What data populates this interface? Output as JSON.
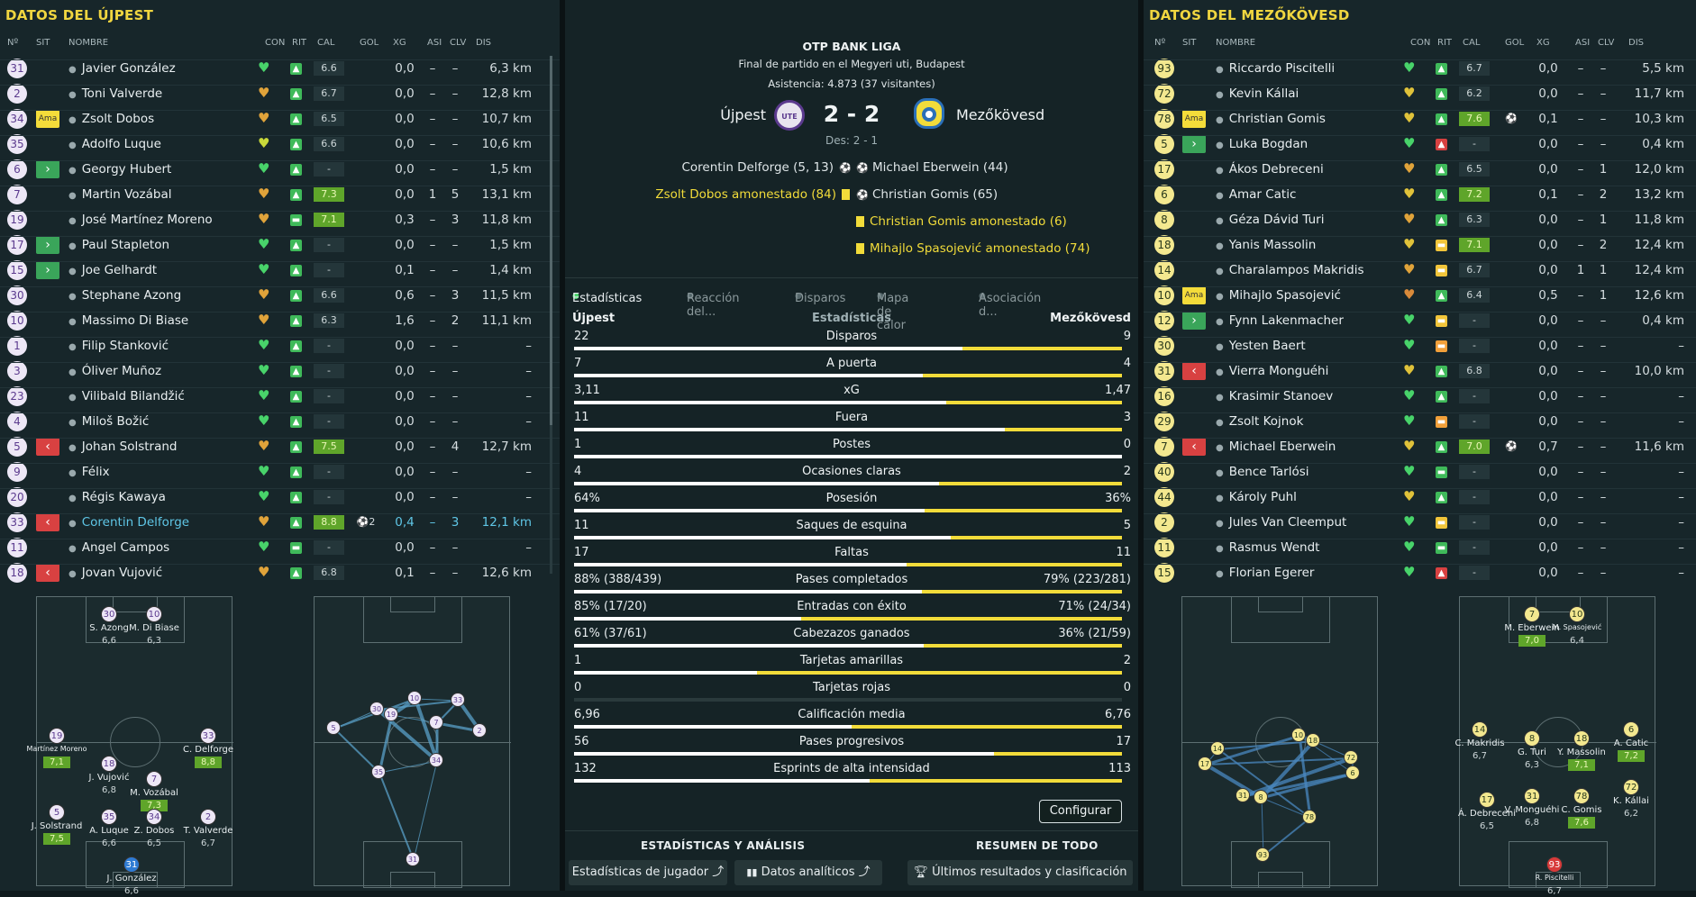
{
  "left": {
    "title": "DATOS DEL ÚJPEST",
    "headers": [
      "Nº",
      "SIT",
      "NOMBRE",
      "CON",
      "RIT",
      "CAL",
      "GOL",
      "XG",
      "ASI",
      "CLV",
      "DIS"
    ],
    "players": [
      {
        "n": "31",
        "sit": "",
        "name": "Javier González",
        "heart": "#48d36a",
        "rit": "#3fba5a",
        "rs": "▲",
        "cal": "6.6",
        "calg": false,
        "gol": "",
        "xg": "0,0",
        "asi": "–",
        "clv": "–",
        "dis": "6,3 km"
      },
      {
        "n": "2",
        "sit": "",
        "name": "Toni Valverde",
        "heart": "#e0a33a",
        "rit": "#3fba5a",
        "rs": "▲",
        "cal": "6.7",
        "calg": false,
        "gol": "",
        "xg": "0,0",
        "asi": "–",
        "clv": "–",
        "dis": "12,8 km"
      },
      {
        "n": "34",
        "sit": "Ama",
        "name": "Zsolt Dobos",
        "heart": "#e0a33a",
        "rit": "#3fba5a",
        "rs": "▲",
        "cal": "6.5",
        "calg": false,
        "gol": "",
        "xg": "0,0",
        "asi": "–",
        "clv": "–",
        "dis": "10,7 km"
      },
      {
        "n": "35",
        "sit": "",
        "name": "Adolfo Luque",
        "heart": "#c9d93a",
        "rit": "#3fba5a",
        "rs": "▲",
        "cal": "6.6",
        "calg": false,
        "gol": "",
        "xg": "0,0",
        "asi": "–",
        "clv": "–",
        "dis": "10,6 km"
      },
      {
        "n": "6",
        "sit": "in",
        "name": "Georgy Hubert",
        "heart": "#48d36a",
        "rit": "#3fba5a",
        "rs": "▲",
        "cal": "-",
        "calg": false,
        "gol": "",
        "xg": "0,0",
        "asi": "–",
        "clv": "–",
        "dis": "1,5 km"
      },
      {
        "n": "7",
        "sit": "",
        "name": "Martin Vozábal",
        "heart": "#e0a33a",
        "rit": "#3fba5a",
        "rs": "▲",
        "cal": "7.3",
        "calg": true,
        "gol": "",
        "xg": "0,0",
        "asi": "1",
        "clv": "5",
        "dis": "13,1 km"
      },
      {
        "n": "19",
        "sit": "",
        "name": "José Martínez Moreno",
        "heart": "#e0a33a",
        "rit": "#3fba5a",
        "rs": "▬",
        "cal": "7.1",
        "calg": true,
        "gol": "",
        "xg": "0,3",
        "asi": "–",
        "clv": "3",
        "dis": "11,8 km"
      },
      {
        "n": "17",
        "sit": "in",
        "name": "Paul Stapleton",
        "heart": "#48d36a",
        "rit": "#3fba5a",
        "rs": "▲",
        "cal": "-",
        "calg": false,
        "gol": "",
        "xg": "0,0",
        "asi": "–",
        "clv": "–",
        "dis": "1,5 km"
      },
      {
        "n": "15",
        "sit": "in",
        "name": "Joe Gelhardt",
        "heart": "#48d36a",
        "rit": "#3fba5a",
        "rs": "▲",
        "cal": "-",
        "calg": false,
        "gol": "",
        "xg": "0,1",
        "asi": "–",
        "clv": "–",
        "dis": "1,4 km"
      },
      {
        "n": "30",
        "sit": "",
        "name": "Stephane Azong",
        "heart": "#e0a33a",
        "rit": "#3fba5a",
        "rs": "▲",
        "cal": "6.6",
        "calg": false,
        "gol": "",
        "xg": "0,6",
        "asi": "–",
        "clv": "3",
        "dis": "11,5 km"
      },
      {
        "n": "10",
        "sit": "",
        "name": "Massimo Di Biase",
        "heart": "#e0a33a",
        "rit": "#3fba5a",
        "rs": "▲",
        "cal": "6.3",
        "calg": false,
        "gol": "",
        "xg": "1,6",
        "asi": "–",
        "clv": "2",
        "dis": "11,1 km"
      },
      {
        "n": "1",
        "sit": "",
        "name": "Filip Stanković",
        "heart": "#48d36a",
        "rit": "#3fba5a",
        "rs": "▲",
        "cal": "-",
        "calg": false,
        "gol": "",
        "xg": "0,0",
        "asi": "–",
        "clv": "–",
        "dis": "–"
      },
      {
        "n": "3",
        "sit": "",
        "name": "Óliver Muñoz",
        "heart": "#48d36a",
        "rit": "#3fba5a",
        "rs": "▲",
        "cal": "-",
        "calg": false,
        "gol": "",
        "xg": "0,0",
        "asi": "–",
        "clv": "–",
        "dis": "–"
      },
      {
        "n": "23",
        "sit": "",
        "name": "Vilibald Bilandžić",
        "heart": "#48d36a",
        "rit": "#3fba5a",
        "rs": "▲",
        "cal": "-",
        "calg": false,
        "gol": "",
        "xg": "0,0",
        "asi": "–",
        "clv": "–",
        "dis": "–"
      },
      {
        "n": "4",
        "sit": "",
        "name": "Miloš Božić",
        "heart": "#48d36a",
        "rit": "#3fba5a",
        "rs": "▲",
        "cal": "-",
        "calg": false,
        "gol": "",
        "xg": "0,0",
        "asi": "–",
        "clv": "–",
        "dis": "–"
      },
      {
        "n": "5",
        "sit": "out",
        "name": "Johan Solstrand",
        "heart": "#e0a33a",
        "rit": "#3fba5a",
        "rs": "▲",
        "cal": "7.5",
        "calg": true,
        "gol": "",
        "xg": "0,0",
        "asi": "–",
        "clv": "4",
        "dis": "12,7 km"
      },
      {
        "n": "9",
        "sit": "",
        "name": "Félix",
        "heart": "#48d36a",
        "rit": "#3fba5a",
        "rs": "▲",
        "cal": "-",
        "calg": false,
        "gol": "",
        "xg": "0,0",
        "asi": "–",
        "clv": "–",
        "dis": "–"
      },
      {
        "n": "20",
        "sit": "",
        "name": "Régis Kawaya",
        "heart": "#48d36a",
        "rit": "#3fba5a",
        "rs": "▲",
        "cal": "-",
        "calg": false,
        "gol": "",
        "xg": "0,0",
        "asi": "–",
        "clv": "–",
        "dis": "–"
      },
      {
        "n": "33",
        "sit": "out",
        "name": "Corentin Delforge",
        "heart": "#e0a33a",
        "rit": "#3fba5a",
        "rs": "▲",
        "cal": "8.8",
        "calg": true,
        "gol": "2",
        "xg": "0,4",
        "asi": "–",
        "clv": "3",
        "dis": "12,1 km",
        "hl": true
      },
      {
        "n": "11",
        "sit": "",
        "name": "Angel Campos",
        "heart": "#48d36a",
        "rit": "#3fba5a",
        "rs": "▬",
        "cal": "-",
        "calg": false,
        "gol": "",
        "xg": "0,0",
        "asi": "–",
        "clv": "–",
        "dis": "–"
      },
      {
        "n": "18",
        "sit": "out",
        "name": "Jovan Vujović",
        "heart": "#e0a33a",
        "rit": "#3fba5a",
        "rs": "▲",
        "cal": "6.8",
        "calg": false,
        "gol": "",
        "xg": "0,1",
        "asi": "–",
        "clv": "–",
        "dis": "12,6 km"
      }
    ],
    "formation": [
      {
        "n": "30",
        "name": "S. Azong",
        "rat": "6,6",
        "g": false
      },
      {
        "n": "10",
        "name": "M. Di Biase",
        "rat": "6,3",
        "g": false
      },
      {
        "n": "19",
        "name": "Martínez Moreno",
        "rat": "7,1",
        "g": true
      },
      {
        "n": "33",
        "name": "C. Delforge",
        "rat": "8,8",
        "g": true
      },
      {
        "n": "18",
        "name": "J. Vujović",
        "rat": "6,8",
        "g": false
      },
      {
        "n": "7",
        "name": "M. Vozábal",
        "rat": "7,3",
        "g": true
      },
      {
        "n": "5",
        "name": "J. Solstrand",
        "rat": "7,5",
        "g": true
      },
      {
        "n": "35",
        "name": "A. Luque",
        "rat": "6,6",
        "g": false
      },
      {
        "n": "34",
        "name": "Z. Dobos",
        "rat": "6,5",
        "g": false
      },
      {
        "n": "2",
        "name": "T. Valverde",
        "rat": "6,7",
        "g": false
      },
      {
        "n": "31",
        "name": "J. González",
        "rat": "6,6",
        "g": false
      }
    ],
    "passmap": [
      "5",
      "30",
      "19",
      "10",
      "33",
      "7",
      "2",
      "34",
      "35",
      "31"
    ]
  },
  "right": {
    "title": "DATOS DEL MEZŐKÖVESD",
    "headers": [
      "Nº",
      "SIT",
      "NOMBRE",
      "CON",
      "RIT",
      "CAL",
      "GOL",
      "XG",
      "ASI",
      "CLV",
      "DIS"
    ],
    "players": [
      {
        "n": "93",
        "sit": "",
        "name": "Riccardo Piscitelli",
        "heart": "#48d36a",
        "rit": "#3fba5a",
        "rs": "▲",
        "cal": "6.7",
        "calg": false,
        "gol": "",
        "xg": "0,0",
        "asi": "–",
        "clv": "–",
        "dis": "5,5 km"
      },
      {
        "n": "72",
        "sit": "",
        "name": "Kevin Kállai",
        "heart": "#e0c23a",
        "rit": "#3fba5a",
        "rs": "▲",
        "cal": "6.2",
        "calg": false,
        "gol": "",
        "xg": "0,0",
        "asi": "–",
        "clv": "–",
        "dis": "11,7 km"
      },
      {
        "n": "78",
        "sit": "Ama",
        "name": "Christian Gomis",
        "heart": "#e0c23a",
        "rit": "#3fba5a",
        "rs": "▲",
        "cal": "7.6",
        "calg": true,
        "gol": "⚽",
        "xg": "0,1",
        "asi": "–",
        "clv": "–",
        "dis": "10,3 km"
      },
      {
        "n": "5",
        "sit": "in",
        "name": "Luka Bogdan",
        "heart": "#48d36a",
        "rit": "#d84141",
        "rs": "▲",
        "cal": "-",
        "calg": false,
        "gol": "",
        "xg": "0,0",
        "asi": "–",
        "clv": "–",
        "dis": "0,4 km"
      },
      {
        "n": "17",
        "sit": "",
        "name": "Ákos Debreceni",
        "heart": "#e0a33a",
        "rit": "#3fba5a",
        "rs": "▲",
        "cal": "6.5",
        "calg": false,
        "gol": "",
        "xg": "0,0",
        "asi": "–",
        "clv": "1",
        "dis": "12,0 km"
      },
      {
        "n": "6",
        "sit": "",
        "name": "Amar Catic",
        "heart": "#e0c23a",
        "rit": "#3fba5a",
        "rs": "▲",
        "cal": "7.2",
        "calg": true,
        "gol": "",
        "xg": "0,1",
        "asi": "–",
        "clv": "2",
        "dis": "13,2 km"
      },
      {
        "n": "8",
        "sit": "",
        "name": "Géza Dávid Turi",
        "heart": "#e0a33a",
        "rit": "#3fba5a",
        "rs": "▲",
        "cal": "6.3",
        "calg": false,
        "gol": "",
        "xg": "0,0",
        "asi": "–",
        "clv": "1",
        "dis": "11,8 km"
      },
      {
        "n": "18",
        "sit": "",
        "name": "Yanis Massolin",
        "heart": "#e0c23a",
        "rit": "#f2c53a",
        "rs": "▬",
        "cal": "7.1",
        "calg": true,
        "gol": "",
        "xg": "0,0",
        "asi": "–",
        "clv": "2",
        "dis": "12,4 km"
      },
      {
        "n": "14",
        "sit": "",
        "name": "Charalampos Makridis",
        "heart": "#e0a33a",
        "rit": "#f2c53a",
        "rs": "▬",
        "cal": "6.7",
        "calg": false,
        "gol": "",
        "xg": "0,0",
        "asi": "1",
        "clv": "1",
        "dis": "12,4 km"
      },
      {
        "n": "10",
        "sit": "Ama",
        "name": "Mihajlo Spasojević",
        "heart": "#d98a3a",
        "rit": "#3fba5a",
        "rs": "▲",
        "cal": "6.4",
        "calg": false,
        "gol": "",
        "xg": "0,5",
        "asi": "–",
        "clv": "1",
        "dis": "12,6 km"
      },
      {
        "n": "12",
        "sit": "in",
        "name": "Fynn Lakenmacher",
        "heart": "#48d36a",
        "rit": "#f2c53a",
        "rs": "▬",
        "cal": "-",
        "calg": false,
        "gol": "",
        "xg": "0,0",
        "asi": "–",
        "clv": "–",
        "dis": "0,4 km"
      },
      {
        "n": "30",
        "sit": "",
        "name": "Yesten Baert",
        "heart": "#48d36a",
        "rit": "#f2a03a",
        "rs": "▬",
        "cal": "-",
        "calg": false,
        "gol": "",
        "xg": "0,0",
        "asi": "–",
        "clv": "–",
        "dis": "–"
      },
      {
        "n": "31",
        "sit": "out",
        "name": "Vierra Monguéhi",
        "heart": "#e0c23a",
        "rit": "#3fba5a",
        "rs": "▲",
        "cal": "6.8",
        "calg": false,
        "gol": "",
        "xg": "0,0",
        "asi": "–",
        "clv": "–",
        "dis": "10,0 km"
      },
      {
        "n": "16",
        "sit": "",
        "name": "Krasimir Stanoev",
        "heart": "#48d36a",
        "rit": "#3fba5a",
        "rs": "▲",
        "cal": "-",
        "calg": false,
        "gol": "",
        "xg": "0,0",
        "asi": "–",
        "clv": "–",
        "dis": "–"
      },
      {
        "n": "29",
        "sit": "",
        "name": "Zsolt Kojnok",
        "heart": "#48d36a",
        "rit": "#f2a03a",
        "rs": "▬",
        "cal": "-",
        "calg": false,
        "gol": "",
        "xg": "0,0",
        "asi": "–",
        "clv": "–",
        "dis": "–"
      },
      {
        "n": "7",
        "sit": "out",
        "name": "Michael Eberwein",
        "heart": "#e0c23a",
        "rit": "#3fba5a",
        "rs": "▲",
        "cal": "7.0",
        "calg": true,
        "gol": "⚽",
        "xg": "0,7",
        "asi": "–",
        "clv": "–",
        "dis": "11,6 km"
      },
      {
        "n": "40",
        "sit": "",
        "name": "Bence Tarlósi",
        "heart": "#48d36a",
        "rit": "#3fba5a",
        "rs": "▬",
        "cal": "-",
        "calg": false,
        "gol": "",
        "xg": "0,0",
        "asi": "–",
        "clv": "–",
        "dis": "–"
      },
      {
        "n": "44",
        "sit": "",
        "name": "Károly Puhl",
        "heart": "#e0c23a",
        "rit": "#3fba5a",
        "rs": "▲",
        "cal": "-",
        "calg": false,
        "gol": "",
        "xg": "0,0",
        "asi": "–",
        "clv": "–",
        "dis": "–"
      },
      {
        "n": "2",
        "sit": "",
        "name": "Jules Van Cleemput",
        "heart": "#48d36a",
        "rit": "#f2c53a",
        "rs": "▬",
        "cal": "-",
        "calg": false,
        "gol": "",
        "xg": "0,0",
        "asi": "–",
        "clv": "–",
        "dis": "–"
      },
      {
        "n": "11",
        "sit": "",
        "name": "Rasmus Wendt",
        "heart": "#48d36a",
        "rit": "#3fba5a",
        "rs": "▬",
        "cal": "-",
        "calg": false,
        "gol": "",
        "xg": "0,0",
        "asi": "–",
        "clv": "–",
        "dis": "–"
      },
      {
        "n": "15",
        "sit": "",
        "name": "Florian Egerer",
        "heart": "#48d36a",
        "rit": "#d84141",
        "rs": "▲",
        "cal": "-",
        "calg": false,
        "gol": "",
        "xg": "0,0",
        "asi": "–",
        "clv": "–",
        "dis": "–"
      }
    ],
    "formation": [
      {
        "n": "7",
        "name": "M. Eberwein",
        "rat": "7,0",
        "g": true
      },
      {
        "n": "10",
        "name": "M. Spasojević",
        "rat": "6,4",
        "g": false
      },
      {
        "n": "14",
        "name": "C. Makridis",
        "rat": "6,7",
        "g": false
      },
      {
        "n": "8",
        "name": "G. Turi",
        "rat": "6,3",
        "g": false
      },
      {
        "n": "18",
        "name": "Y. Massolin",
        "rat": "7,1",
        "g": true
      },
      {
        "n": "6",
        "name": "A. Catic",
        "rat": "7,2",
        "g": true
      },
      {
        "n": "17",
        "name": "Á. Debreceni",
        "rat": "6,5",
        "g": false
      },
      {
        "n": "31",
        "name": "V. Monguéhi",
        "rat": "6,8",
        "g": false
      },
      {
        "n": "78",
        "name": "C. Gomis",
        "rat": "7,6",
        "g": true
      },
      {
        "n": "72",
        "name": "K. Kállai",
        "rat": "6,2",
        "g": false
      },
      {
        "n": "93",
        "name": "R. Piscitelli",
        "rat": "6,7",
        "g": false
      }
    ],
    "passmap": [
      "14",
      "17",
      "10",
      "18",
      "72",
      "6",
      "31",
      "8",
      "78",
      "93"
    ]
  },
  "match": {
    "league": "OTP BANK LIGA",
    "subtitle": "Final de partido en el Megyeri uti, Budapest",
    "attendance": "Asistencia: 4.873 (37 visitantes)",
    "home": "Újpest",
    "away": "Mezőkövesd",
    "score": "2 - 2",
    "des": "Des: 2 - 1",
    "home_events": [
      {
        "text": "Corentin Delforge (5, 13)",
        "type": "goal"
      },
      {
        "text": "Zsolt Dobos amonestado (84)",
        "type": "yellow"
      }
    ],
    "away_events": [
      {
        "text": "Michael Eberwein (44)",
        "type": "goal"
      },
      {
        "text": "Christian Gomis (65)",
        "type": "goal"
      },
      {
        "text": "Christian Gomis amonestado (6)",
        "type": "yellow"
      },
      {
        "text": "Mihajlo Spasojević amonestado (74)",
        "type": "yellow"
      }
    ]
  },
  "tabs": [
    "Estadísticas",
    "Reacción del...",
    "Disparos",
    "Mapa de calor",
    "Asociación d..."
  ],
  "stats_header": {
    "home": "Újpest",
    "mid": "Estadísticas",
    "away": "Mezőkövesd"
  },
  "stats": [
    {
      "label": "Disparos",
      "h": "22",
      "a": "9",
      "hv": 22,
      "av": 9
    },
    {
      "label": "A puerta",
      "h": "7",
      "a": "4",
      "hv": 7,
      "av": 4
    },
    {
      "label": "xG",
      "h": "3,11",
      "a": "1,47",
      "hv": 3.11,
      "av": 1.47
    },
    {
      "label": "Fuera",
      "h": "11",
      "a": "3",
      "hv": 11,
      "av": 3
    },
    {
      "label": "Postes",
      "h": "1",
      "a": "0",
      "hv": 1,
      "av": 0
    },
    {
      "label": "Ocasiones claras",
      "h": "4",
      "a": "2",
      "hv": 4,
      "av": 2
    },
    {
      "label": "Posesión",
      "h": "64%",
      "a": "36%",
      "hv": 64,
      "av": 36
    },
    {
      "label": "Saques de esquina",
      "h": "11",
      "a": "5",
      "hv": 11,
      "av": 5
    },
    {
      "label": "Faltas",
      "h": "17",
      "a": "11",
      "hv": 17,
      "av": 11
    },
    {
      "label": "Pases completados",
      "h": "88% (388/439)",
      "a": "79% (223/281)",
      "hv": 388,
      "av": 223
    },
    {
      "label": "Entradas con éxito",
      "h": "85% (17/20)",
      "a": "71% (24/34)",
      "hv": 17,
      "av": 24
    },
    {
      "label": "Cabezazos ganados",
      "h": "61% (37/61)",
      "a": "36% (21/59)",
      "hv": 37,
      "av": 21
    },
    {
      "label": "Tarjetas amarillas",
      "h": "1",
      "a": "2",
      "hv": 1,
      "av": 2
    },
    {
      "label": "Tarjetas rojas",
      "h": "0",
      "a": "0",
      "hv": 0,
      "av": 0
    },
    {
      "label": "Calificación media",
      "h": "6,96",
      "a": "6,76",
      "hv": 6.96,
      "av": 6.76
    },
    {
      "label": "Pases progresivos",
      "h": "56",
      "a": "17",
      "hv": 56,
      "av": 17
    },
    {
      "label": "Esprints de alta intensidad",
      "h": "132",
      "a": "113",
      "hv": 132,
      "av": 113
    }
  ],
  "configure_label": "Configurar",
  "footer": {
    "section1": "ESTADÍSTICAS Y ANÁLISIS",
    "section2": "RESUMEN DE TODO",
    "btn1": "Estadísticas de jugador",
    "btn2": "Datos analíticos",
    "btn3": "Últimos resultados y clasificación"
  },
  "colors": {
    "home": "#ffffff",
    "away": "#f2dc3a",
    "accent": "#f0d640"
  }
}
